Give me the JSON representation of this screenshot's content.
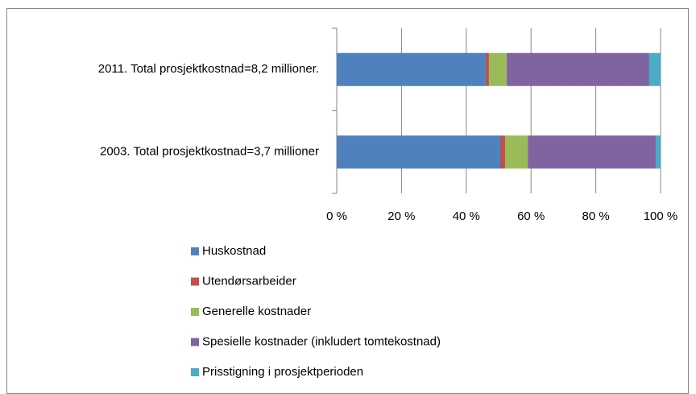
{
  "chart_data": {
    "type": "bar",
    "orientation": "horizontal",
    "stacked": true,
    "categories": [
      "2011. Total prosjektkostnad=8,2 millioner.",
      "2003. Total prosjektkostnad=3,7 millioner"
    ],
    "series": [
      {
        "name": "Huskostnad",
        "color": "#4f81bd",
        "values": [
          46,
          50.5
        ]
      },
      {
        "name": "Utendørsarbeider",
        "color": "#c0504d",
        "values": [
          1,
          1.5
        ]
      },
      {
        "name": "Generelle kostnader",
        "color": "#9bbb59",
        "values": [
          5.5,
          7
        ]
      },
      {
        "name": "Spesielle kostnader (inkludert tomtekostnad)",
        "color": "#8064a2",
        "values": [
          44,
          39.5
        ]
      },
      {
        "name": "Prisstigning i prosjektperioden",
        "color": "#4bacc6",
        "values": [
          3.5,
          1.5
        ]
      }
    ],
    "xlim": [
      0,
      100
    ],
    "xticks": [
      {
        "value": 0,
        "label": "0 %"
      },
      {
        "value": 20,
        "label": "20 %"
      },
      {
        "value": 40,
        "label": "40 %"
      },
      {
        "value": 60,
        "label": "60 %"
      },
      {
        "value": 80,
        "label": "80 %"
      },
      {
        "value": 100,
        "label": "100 %"
      }
    ],
    "grid": true,
    "legend": "bottom"
  }
}
